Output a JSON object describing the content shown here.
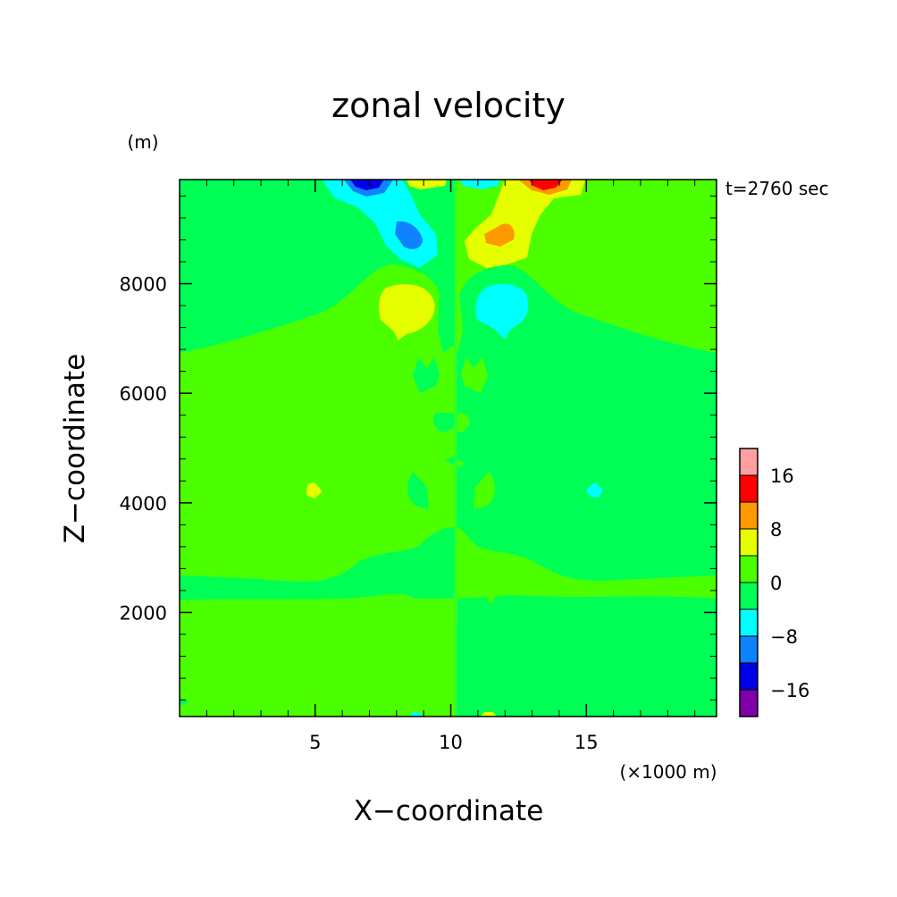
{
  "chart_data": {
    "type": "heatmap",
    "title": "zonal velocity",
    "xlabel": "X−coordinate",
    "ylabel": "Z−coordinate",
    "x_unit": "(×1000 m)",
    "y_unit": "(m)",
    "time_label": "t=2760 sec",
    "xlim": [
      0,
      19.8
    ],
    "ylim": [
      100,
      9900
    ],
    "x_ticks": [
      5,
      10,
      15
    ],
    "x_tick_labels": [
      "5",
      "10",
      "15"
    ],
    "y_ticks": [
      2000,
      4000,
      6000,
      8000
    ],
    "y_tick_labels": [
      "2000",
      "4000",
      "6000",
      "8000"
    ],
    "background_level_left": "0..4",
    "background_level_right": "-4..0",
    "colorbar": {
      "bounds": [
        -20,
        -16,
        -12,
        -8,
        -4,
        0,
        4,
        8,
        12,
        16,
        20
      ],
      "colors": [
        "#7f00a8",
        "#0000e6",
        "#0f82ff",
        "#00ffff",
        "#00ff55",
        "#4cff00",
        "#e6ff00",
        "#ff9900",
        "#ff0000",
        "#ff9f9f"
      ],
      "tick_values": [
        -16,
        -8,
        0,
        8,
        16
      ],
      "tick_labels": [
        "−16",
        "−8",
        "0",
        "8",
        "16"
      ]
    },
    "features": [
      {
        "level": "4..8",
        "x": 8.5,
        "z": 7550
      },
      {
        "level": "-8..-4",
        "x": 11.8,
        "z": 7550
      },
      {
        "level": "-8..-4",
        "x": 8.6,
        "z": 9150
      },
      {
        "level": "-12..-8",
        "x": 8.6,
        "z": 9050
      },
      {
        "level": "4..8",
        "x": 11.8,
        "z": 8950
      },
      {
        "level": "8..12",
        "x": 11.8,
        "z": 8950
      },
      {
        "level": "-16..-12",
        "x": 7.0,
        "z": 9800
      },
      {
        "level": "12..16",
        "x": 13.3,
        "z": 9800
      },
      {
        "level": "4..8",
        "x": 5.1,
        "z": 4200
      },
      {
        "level": "-8..-4",
        "x": 15.4,
        "z": 4200
      }
    ]
  }
}
